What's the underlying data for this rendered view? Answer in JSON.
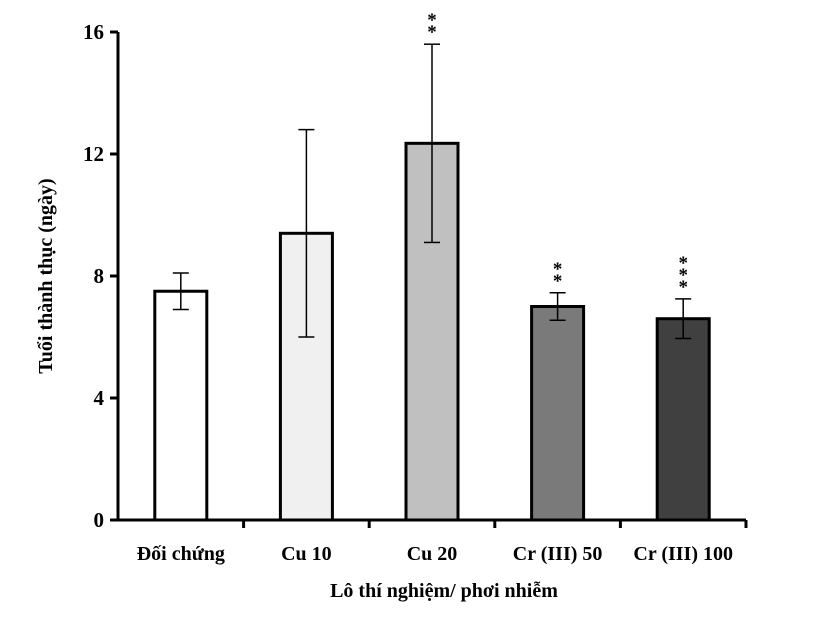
{
  "chart_data": {
    "type": "bar",
    "title": "",
    "xlabel": "Lô thí nghiệm/ phơi nhiễm",
    "ylabel": "Tuổi thành thục (ngày)",
    "ylim": [
      0,
      16
    ],
    "yticks": [
      0,
      4,
      8,
      12,
      16
    ],
    "ytick_labels": [
      "0",
      "4",
      "8",
      "12",
      "16"
    ],
    "categories": [
      "Đối chứng",
      "Cu 10",
      "Cu 20",
      "Cr (III) 50",
      "Cr (III) 100"
    ],
    "values": [
      7.5,
      9.4,
      12.35,
      7.0,
      6.6
    ],
    "errors": [
      0.6,
      3.4,
      3.25,
      0.45,
      0.65
    ],
    "significance": [
      "",
      "",
      "**",
      "**",
      "***"
    ],
    "bar_colors": [
      "#ffffff",
      "#f0f0f0",
      "#c0c0c0",
      "#7a7a7a",
      "#404040"
    ],
    "grid": false,
    "legend": "none"
  }
}
